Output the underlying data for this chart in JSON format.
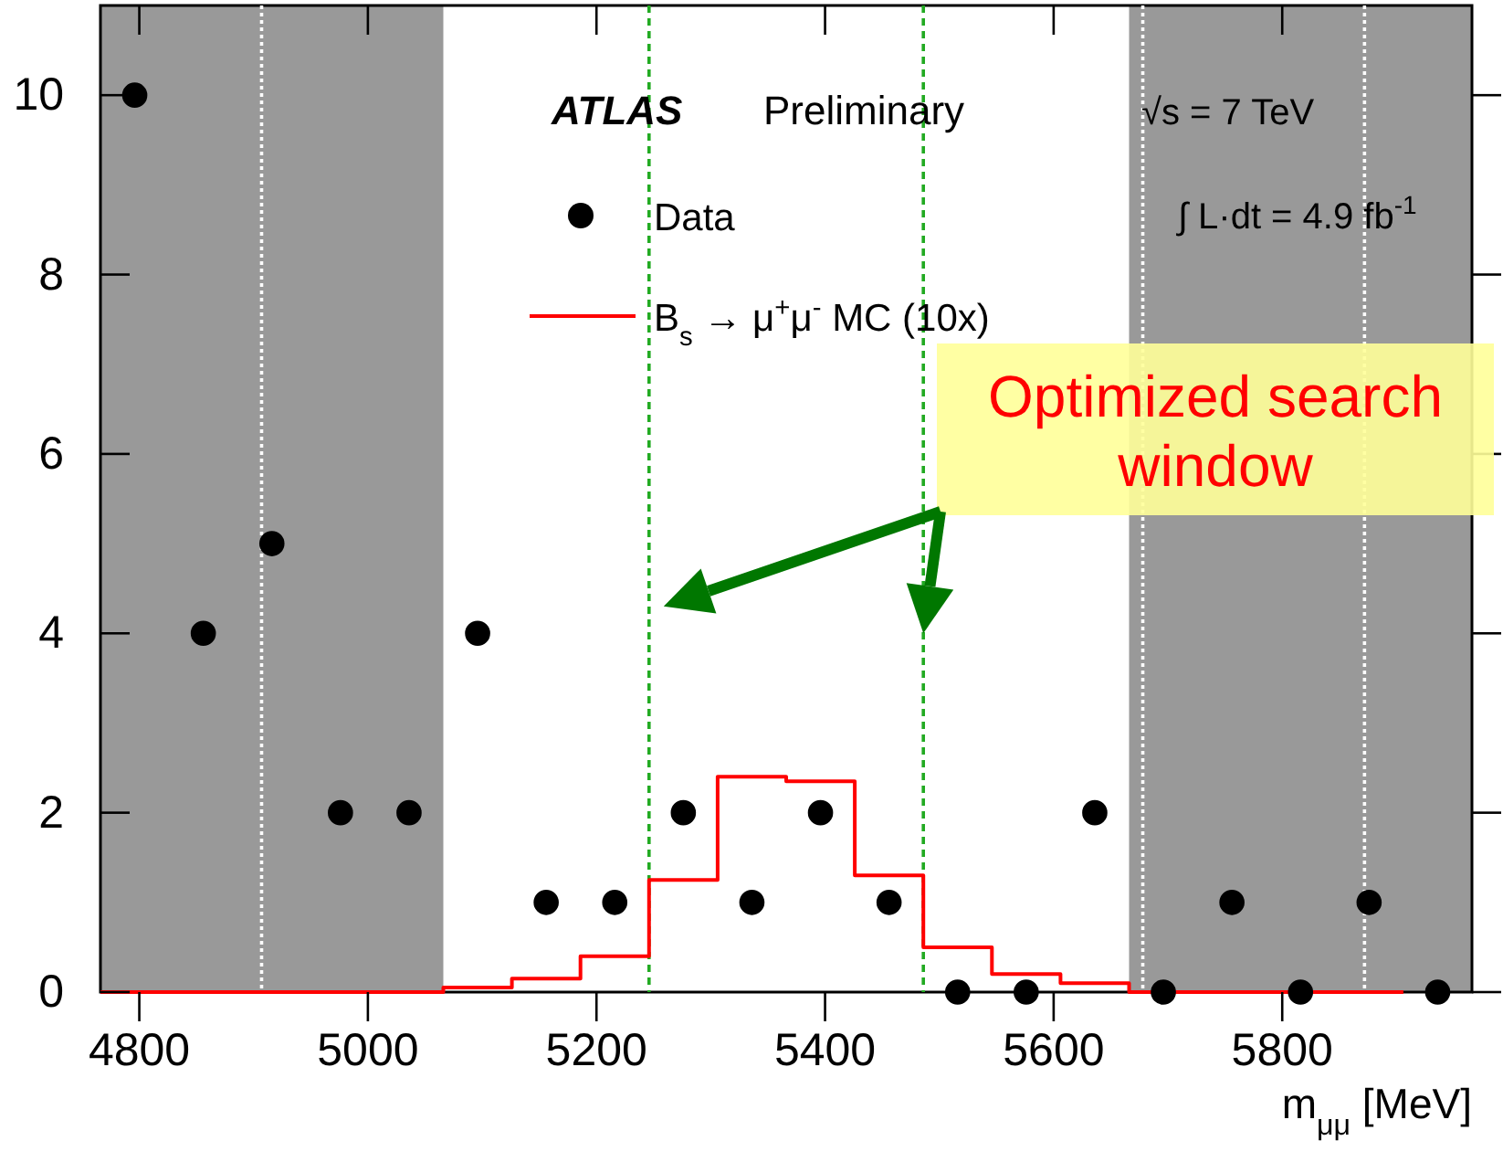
{
  "chart_data": {
    "type": "scatter",
    "xlabel": "m$_{μμ}$ [MeV]",
    "xlim": [
      4766,
      5966
    ],
    "xticks": [
      4800,
      5000,
      5200,
      5400,
      5600,
      5800
    ],
    "ylim": [
      0,
      11
    ],
    "yticks": [
      0,
      2,
      4,
      6,
      8,
      10
    ],
    "grid": false,
    "legend": "top",
    "series": [
      {
        "name": "Data",
        "type": "scatter",
        "marker": "circle",
        "color": "#000000",
        "x": [
          4796,
          4856,
          4916,
          4976,
          5036,
          5096,
          5156,
          5216,
          5276,
          5336,
          5396,
          5456,
          5516,
          5576,
          5636,
          5696,
          5756,
          5816,
          5876,
          5936
        ],
        "values": [
          10,
          4,
          5,
          2,
          2,
          4,
          1,
          1,
          2,
          1,
          2,
          1,
          0,
          0,
          2,
          0,
          1,
          0,
          1,
          0
        ]
      },
      {
        "name": "B$_{s}$ → μ$^{+}$μ$^{-}$  MC (10x)",
        "type": "step",
        "color": "#ff0000",
        "x": [
          4766,
          4826,
          4886,
          4946,
          5006,
          5066,
          5126,
          5186,
          5246,
          5306,
          5366,
          5426,
          5486,
          5546,
          5606,
          5666,
          5726,
          5786,
          5846,
          5906
        ],
        "values": [
          0,
          0,
          0,
          0,
          0,
          0.05,
          0.15,
          0.4,
          1.25,
          2.4,
          2.35,
          1.3,
          0.5,
          0.2,
          0.1,
          0,
          0,
          0,
          0,
          0
        ]
      }
    ],
    "bands": [
      {
        "axis": "x",
        "from": 4766,
        "to": 5066,
        "color": "#999999"
      },
      {
        "axis": "x",
        "from": 5666,
        "to": 5966,
        "color": "#999999"
      }
    ],
    "ref_lines": [
      {
        "axis": "x",
        "value": 4907,
        "color": "#ffffff",
        "line_style": "dotted"
      },
      {
        "axis": "x",
        "value": 5678,
        "color": "#ffffff",
        "line_style": "dotted"
      },
      {
        "axis": "x",
        "value": 5872,
        "color": "#ffffff",
        "line_style": "dotted"
      },
      {
        "axis": "x",
        "value": 5246,
        "color": "#22aa22",
        "line_style": "dashed"
      },
      {
        "axis": "x",
        "value": 5486,
        "color": "#22aa22",
        "line_style": "dashed"
      }
    ],
    "annotations": [
      "ATLAS",
      "Preliminary",
      "√s = 7 TeV",
      "∫ L·dt = 4.9 fb$^{-1}$",
      "Optimized search window"
    ]
  }
}
